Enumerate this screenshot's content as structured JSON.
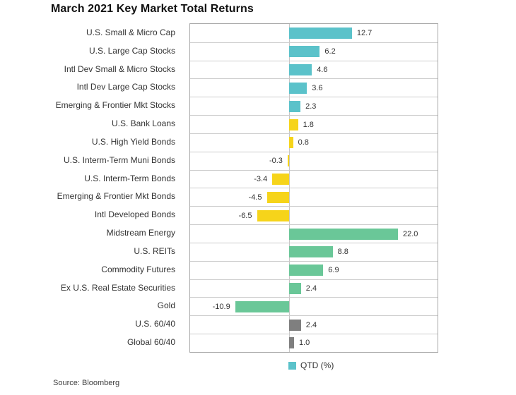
{
  "page": {
    "title": "March 2021 Key Market Total Returns",
    "source": "Source: Bloomberg"
  },
  "legend": {
    "label": "QTD (%)",
    "swatch_color": "#5BC2CA"
  },
  "colors": {
    "plot_border": "#A6A6A6",
    "row_separator": "#CCCCCC",
    "zero_line": "#C6C6C6",
    "text": "#333333",
    "group_stocks": "#5BC2CA",
    "group_bonds": "#F6D41A",
    "group_real_assets": "#6AC798",
    "group_blends": "#7F7F7F"
  },
  "chart_data": {
    "type": "bar",
    "orientation": "horizontal",
    "title": "March 2021 Key Market Total Returns",
    "xlabel": "",
    "ylabel": "",
    "xlim": [
      -20,
      30
    ],
    "grid": false,
    "legend_entries": [
      "QTD (%)"
    ],
    "legend_position": "bottom",
    "value_label_format": "one decimal, outside bar end",
    "categories": [
      "U.S. Small & Micro Cap",
      "U.S. Large Cap Stocks",
      "Intl Dev Small & Micro Stocks",
      "Intl Dev Large Cap Stocks",
      "Emerging & Frontier Mkt Stocks",
      "U.S. Bank Loans",
      "U.S. High Yield Bonds",
      "U.S. Interm-Term Muni Bonds",
      "U.S. Interm-Term Bonds",
      "Emerging & Frontier Mkt Bonds",
      "Intl Developed Bonds",
      "Midstream Energy",
      "U.S. REITs",
      "Commodity Futures",
      "Ex U.S. Real Estate Securities",
      "Gold",
      "U.S. 60/40",
      "Global 60/40"
    ],
    "values": [
      12.7,
      6.2,
      4.6,
      3.6,
      2.3,
      1.8,
      0.8,
      -0.3,
      -3.4,
      -4.5,
      -6.5,
      22.0,
      8.8,
      6.9,
      2.4,
      -10.9,
      2.4,
      1.0
    ],
    "bar_colors": [
      "#5BC2CA",
      "#5BC2CA",
      "#5BC2CA",
      "#5BC2CA",
      "#5BC2CA",
      "#F6D41A",
      "#F6D41A",
      "#F6D41A",
      "#F6D41A",
      "#F6D41A",
      "#F6D41A",
      "#6AC798",
      "#6AC798",
      "#6AC798",
      "#6AC798",
      "#6AC798",
      "#7F7F7F",
      "#7F7F7F"
    ]
  }
}
